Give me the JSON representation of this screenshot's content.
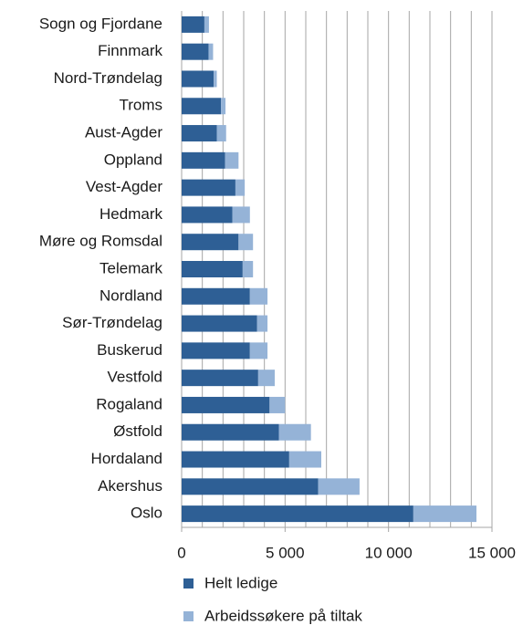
{
  "chart_data": {
    "type": "stacked_barh",
    "categories": [
      "Sogn og Fjordane",
      "Finnmark",
      "Nord-Trøndelag",
      "Troms",
      "Aust-Agder",
      "Oppland",
      "Vest-Agder",
      "Hedmark",
      "Møre og Romsdal",
      "Telemark",
      "Nordland",
      "Sør-Trøndelag",
      "Buskerud",
      "Vestfold",
      "Rogaland",
      "Østfold",
      "Hordaland",
      "Akershus",
      "Oslo"
    ],
    "series": [
      {
        "name": "Helt ledige",
        "color": "#2e5f95",
        "values": [
          1100,
          1300,
          1550,
          1900,
          1700,
          2100,
          2600,
          2450,
          2750,
          2950,
          3300,
          3650,
          3300,
          3700,
          4250,
          4700,
          5200,
          6600,
          11200
        ]
      },
      {
        "name": "Arbeidssøkere på tiltak",
        "color": "#95b3d7",
        "values": [
          220,
          220,
          150,
          220,
          450,
          650,
          450,
          850,
          700,
          500,
          850,
          500,
          850,
          800,
          750,
          1550,
          1550,
          2000,
          3050
        ]
      }
    ],
    "xlim": [
      0,
      15000
    ],
    "xticks": [
      0,
      {
        "value": 5000,
        "label": "5 000"
      },
      {
        "value": 10000,
        "label": "10 000"
      },
      {
        "value": 15000,
        "label": "15 000"
      }
    ],
    "xgrid_ticks": [
      1000,
      2000,
      3000,
      4000,
      5000,
      6000,
      7000,
      8000,
      9000,
      10000,
      11000,
      12000,
      13000,
      14000,
      15000
    ],
    "grid": true
  }
}
